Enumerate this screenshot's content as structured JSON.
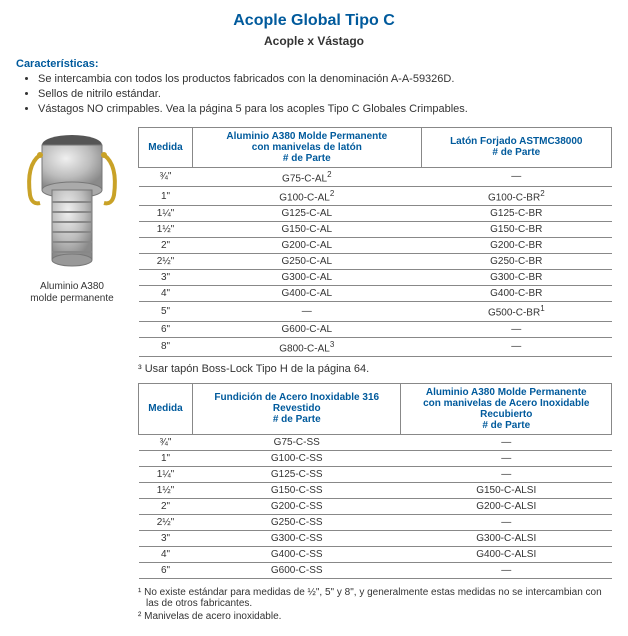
{
  "title": "Acople Global Tipo C",
  "subtitle": "Acople x Vástago",
  "features_heading": "Características:",
  "features": [
    "Se intercambia con todos los productos fabricados con la denominación A-A-59326D.",
    "Sellos de nitrilo estándar.",
    "Vástagos NO crimpables. Vea la página 5 para los acoples Tipo C Globales Crimpables."
  ],
  "image_caption_line1": "Aluminio A380",
  "image_caption_line2": "molde permanente",
  "table1": {
    "head_medida": "Medida",
    "head_col1_l1": "Aluminio A380 Molde Permanente",
    "head_col1_l2": "con manivelas de latón",
    "head_col1_l3": "# de Parte",
    "head_col2_l1": "Latón Forjado ASTMC38000",
    "head_col2_l2": "# de Parte",
    "rows": [
      {
        "size": "¾\"",
        "c1": "G75-C-AL",
        "c1sup": "2",
        "c2": "—"
      },
      {
        "size": "1\"",
        "c1": "G100-C-AL",
        "c1sup": "2",
        "c2": "G100-C-BR",
        "c2sup": "2"
      },
      {
        "size": "1¼\"",
        "c1": "G125-C-AL",
        "c2": "G125-C-BR"
      },
      {
        "size": "1½\"",
        "c1": "G150-C-AL",
        "c2": "G150-C-BR"
      },
      {
        "size": "2\"",
        "c1": "G200-C-AL",
        "c2": "G200-C-BR"
      },
      {
        "size": "2½\"",
        "c1": "G250-C-AL",
        "c2": "G250-C-BR"
      },
      {
        "size": "3\"",
        "c1": "G300-C-AL",
        "c2": "G300-C-BR"
      },
      {
        "size": "4\"",
        "c1": "G400-C-AL",
        "c2": "G400-C-BR"
      },
      {
        "size": "5\"",
        "c1": "—",
        "c2": "G500-C-BR",
        "c2sup": "1"
      },
      {
        "size": "6\"",
        "c1": "G600-C-AL",
        "c2": "—"
      },
      {
        "size": "8\"",
        "c1": "G800-C-AL",
        "c1sup": "3",
        "c2": "—"
      }
    ],
    "footnote_mid": "³  Usar tapón Boss-Lock Tipo H de la página 64."
  },
  "table2": {
    "head_medida": "Medida",
    "head_col1_l1": "Fundición de Acero Inoxidable 316",
    "head_col1_l2": "Revestido",
    "head_col1_l3": "# de Parte",
    "head_col2_l1": "Aluminio A380 Molde Permanente",
    "head_col2_l2": "con manivelas de Acero Inoxidable",
    "head_col2_l3": "Recubierto",
    "head_col2_l4": "# de Parte",
    "rows": [
      {
        "size": "¾\"",
        "c1": "G75-C-SS",
        "c2": "—"
      },
      {
        "size": "1\"",
        "c1": "G100-C-SS",
        "c2": "—"
      },
      {
        "size": "1¼\"",
        "c1": "G125-C-SS",
        "c2": "—"
      },
      {
        "size": "1½\"",
        "c1": "G150-C-SS",
        "c2": "G150-C-ALSI"
      },
      {
        "size": "2\"",
        "c1": "G200-C-SS",
        "c2": "G200-C-ALSI"
      },
      {
        "size": "2½\"",
        "c1": "G250-C-SS",
        "c2": "—"
      },
      {
        "size": "3\"",
        "c1": "G300-C-SS",
        "c2": "G300-C-ALSI"
      },
      {
        "size": "4\"",
        "c1": "G400-C-SS",
        "c2": "G400-C-ALSI"
      },
      {
        "size": "6\"",
        "c1": "G600-C-SS",
        "c2": "—"
      }
    ]
  },
  "footnotes": {
    "n1": "¹  No existe estándar para medidas de ½\", 5\" y 8\", y generalmente estas medidas no se intercambian con las de otros fabricantes.",
    "n2": "²  Manivelas de acero inoxidable."
  },
  "colors": {
    "heading": "#005a9c",
    "rule": "#888888",
    "text": "#333333"
  }
}
